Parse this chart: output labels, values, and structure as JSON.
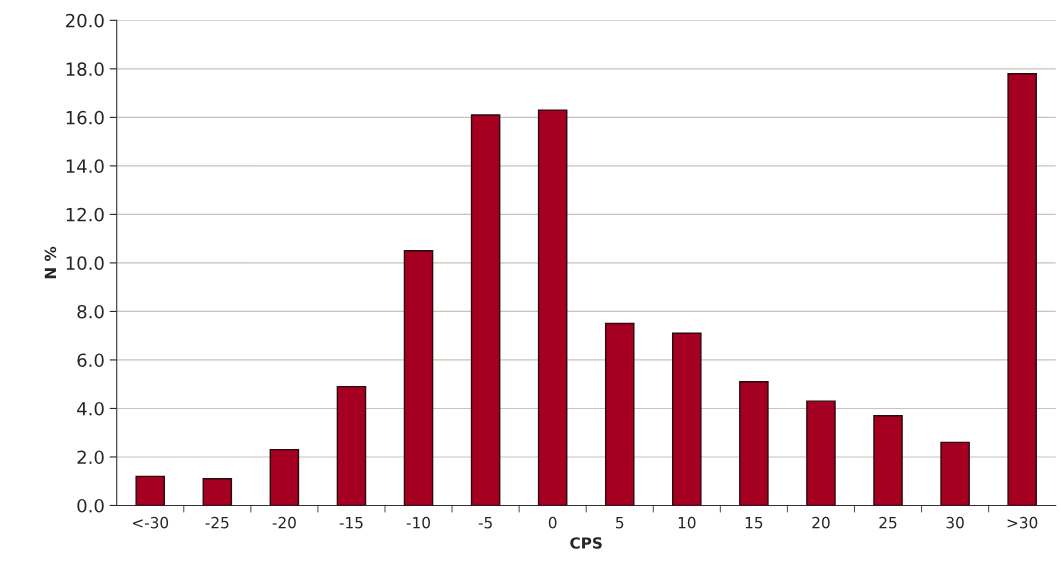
{
  "chart_data": {
    "type": "bar",
    "xlabel": "CPS",
    "ylabel": "N %",
    "categories": [
      "<-30",
      "-25",
      "-20",
      "-15",
      "-10",
      "-5",
      "0",
      "5",
      "10",
      "15",
      "20",
      "25",
      "30",
      ">30"
    ],
    "values": [
      1.2,
      1.1,
      2.3,
      4.9,
      10.5,
      16.1,
      16.3,
      7.5,
      7.1,
      5.1,
      4.3,
      3.7,
      2.6,
      17.8
    ],
    "color": "#a50021",
    "ylim": [
      0,
      20
    ],
    "yticks": [
      {
        "value": 0,
        "label": "0.0"
      },
      {
        "value": 2,
        "label": "2.0"
      },
      {
        "value": 4,
        "label": "4.0"
      },
      {
        "value": 6,
        "label": "6.0"
      },
      {
        "value": 8,
        "label": "8.0"
      },
      {
        "value": 10,
        "label": "10.0"
      },
      {
        "value": 12,
        "label": "12.0"
      },
      {
        "value": 14,
        "label": "14.0"
      },
      {
        "value": 16,
        "label": "16.0"
      },
      {
        "value": 18,
        "label": "18.0"
      },
      {
        "value": 20,
        "label": "20.0"
      }
    ],
    "grid": "y",
    "legend": false
  }
}
